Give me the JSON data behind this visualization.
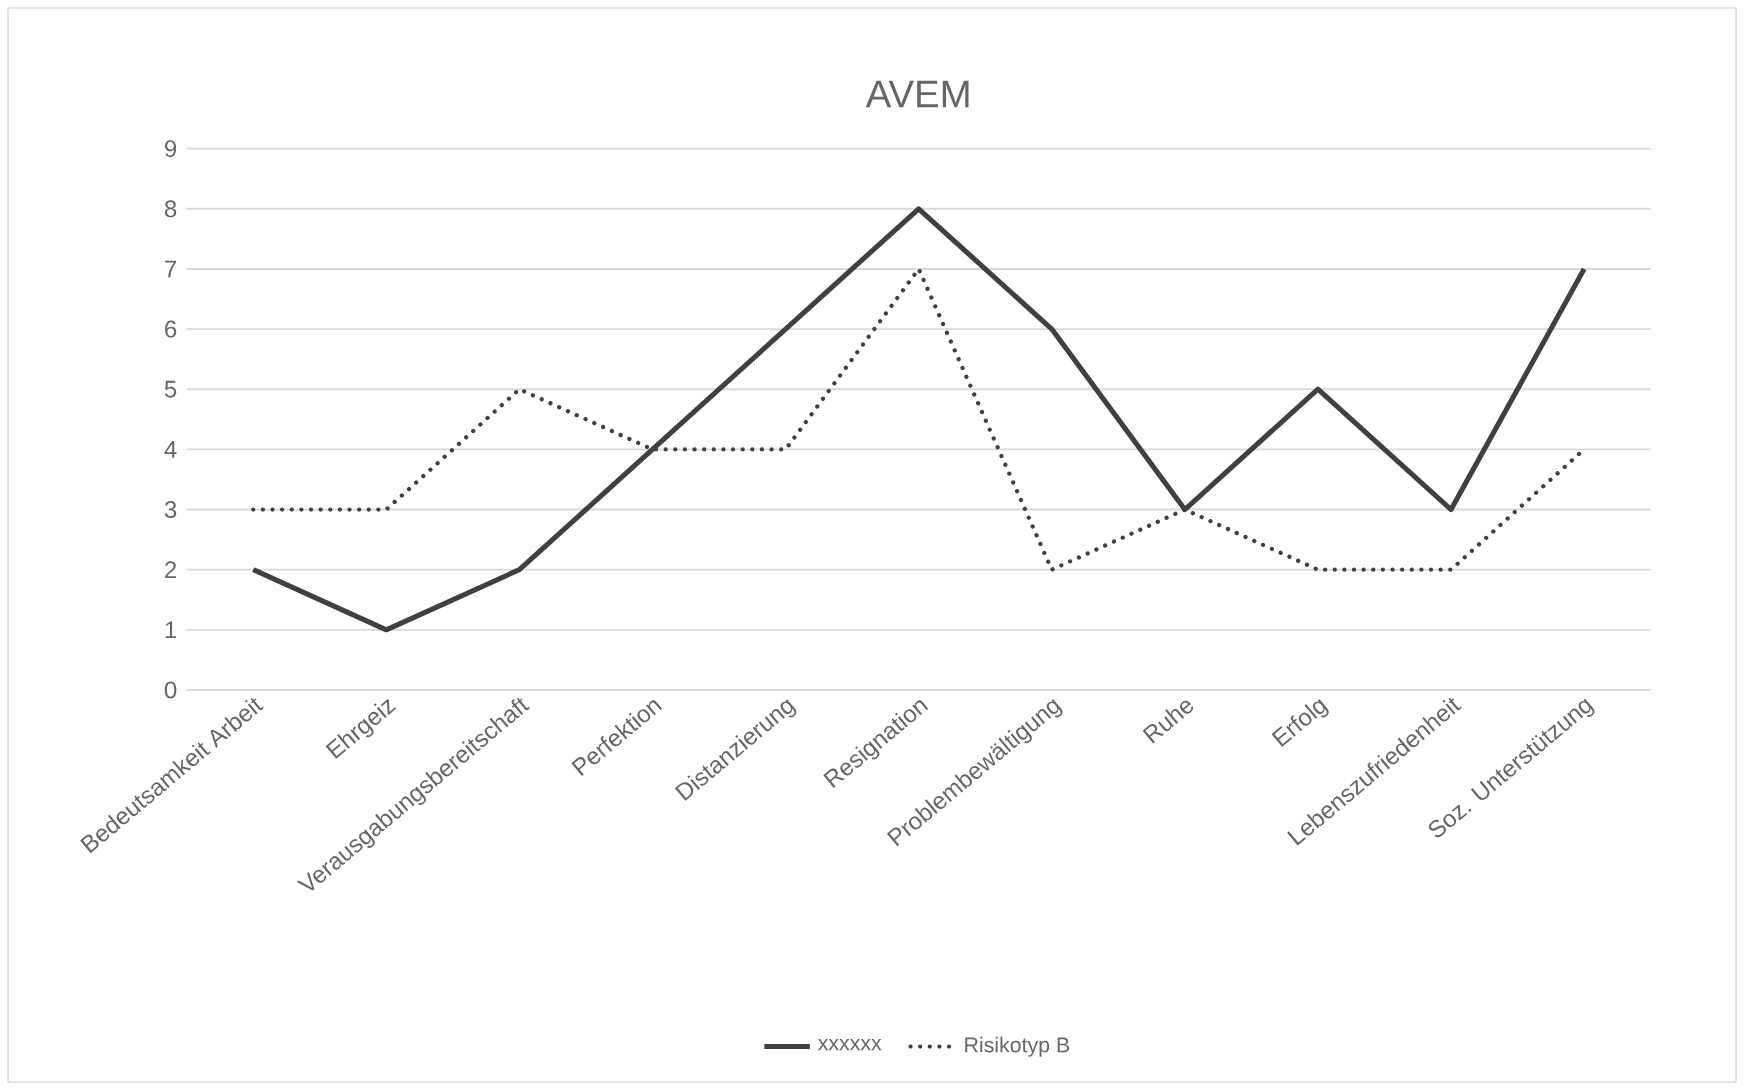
{
  "chart_data": {
    "type": "line",
    "title": "AVEM",
    "categories": [
      "Bedeutsamkeit Arbeit",
      "Ehrgeiz",
      "Verausgabungsbereitschaft",
      "Perfektion",
      "Distanzierung",
      "Resignation",
      "Problembewältigung",
      "Ruhe",
      "Erfolg",
      "Lebenszufriedenheit",
      "Soz. Unterstützung"
    ],
    "series": [
      {
        "name": "xxxxxx",
        "color": "#404040",
        "line_style": "solid",
        "values": [
          2,
          1,
          2,
          4,
          6,
          8,
          6,
          3,
          5,
          3,
          7
        ]
      },
      {
        "name": "Risikotyp B",
        "color": "#404040",
        "line_style": "dotted",
        "values": [
          3,
          3,
          5,
          4,
          4,
          7,
          2,
          3,
          2,
          2,
          4
        ]
      }
    ],
    "ylim": [
      0,
      9
    ],
    "yticks": [
      0,
      1,
      2,
      3,
      4,
      5,
      6,
      7,
      8,
      9
    ],
    "grid": "y",
    "legend": "bottom"
  }
}
